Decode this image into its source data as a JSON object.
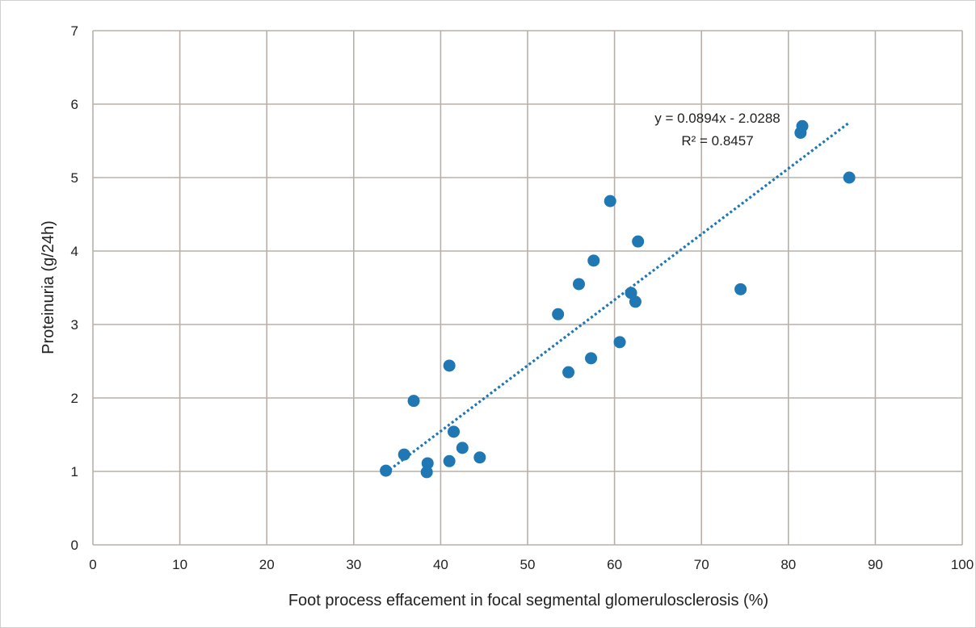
{
  "chart_data": {
    "type": "scatter",
    "xlabel": "Foot process effacement in focal segmental glomerulosclerosis (%)",
    "ylabel": "Proteinuria (g/24h)",
    "xlim": [
      0,
      100
    ],
    "ylim": [
      0,
      7
    ],
    "x_ticks": [
      "0",
      "10",
      "20",
      "30",
      "40",
      "50",
      "60",
      "70",
      "80",
      "90",
      "100"
    ],
    "y_ticks": [
      "0",
      "1",
      "2",
      "3",
      "4",
      "5",
      "6",
      "7"
    ],
    "grid": true,
    "colors": {
      "points": "#1f77b4",
      "trendline": "#1f77b4",
      "grid": "#b8b0a8"
    },
    "series": [
      {
        "points": [
          {
            "x": 33.7,
            "y": 1.01
          },
          {
            "x": 35.8,
            "y": 1.23
          },
          {
            "x": 36.9,
            "y": 1.96
          },
          {
            "x": 38.5,
            "y": 1.11
          },
          {
            "x": 38.4,
            "y": 0.99
          },
          {
            "x": 41.0,
            "y": 1.14
          },
          {
            "x": 41.0,
            "y": 2.44
          },
          {
            "x": 41.5,
            "y": 1.54
          },
          {
            "x": 42.5,
            "y": 1.32
          },
          {
            "x": 44.5,
            "y": 1.19
          },
          {
            "x": 53.5,
            "y": 3.14
          },
          {
            "x": 54.7,
            "y": 2.35
          },
          {
            "x": 55.9,
            "y": 3.55
          },
          {
            "x": 57.3,
            "y": 2.54
          },
          {
            "x": 57.6,
            "y": 3.87
          },
          {
            "x": 59.5,
            "y": 4.68
          },
          {
            "x": 60.6,
            "y": 2.76
          },
          {
            "x": 61.9,
            "y": 3.43
          },
          {
            "x": 62.4,
            "y": 3.31
          },
          {
            "x": 62.7,
            "y": 4.13
          },
          {
            "x": 74.5,
            "y": 3.48
          },
          {
            "x": 81.4,
            "y": 5.61
          },
          {
            "x": 81.6,
            "y": 5.7
          },
          {
            "x": 87.0,
            "y": 5.0
          }
        ]
      }
    ],
    "trendline": {
      "type": "linear",
      "slope": 0.0894,
      "intercept": -2.0288,
      "x_range": [
        33.7,
        87.0
      ],
      "equation": "y = 0.0894x - 2.0288",
      "r_squared": "R² = 0.8457"
    }
  }
}
